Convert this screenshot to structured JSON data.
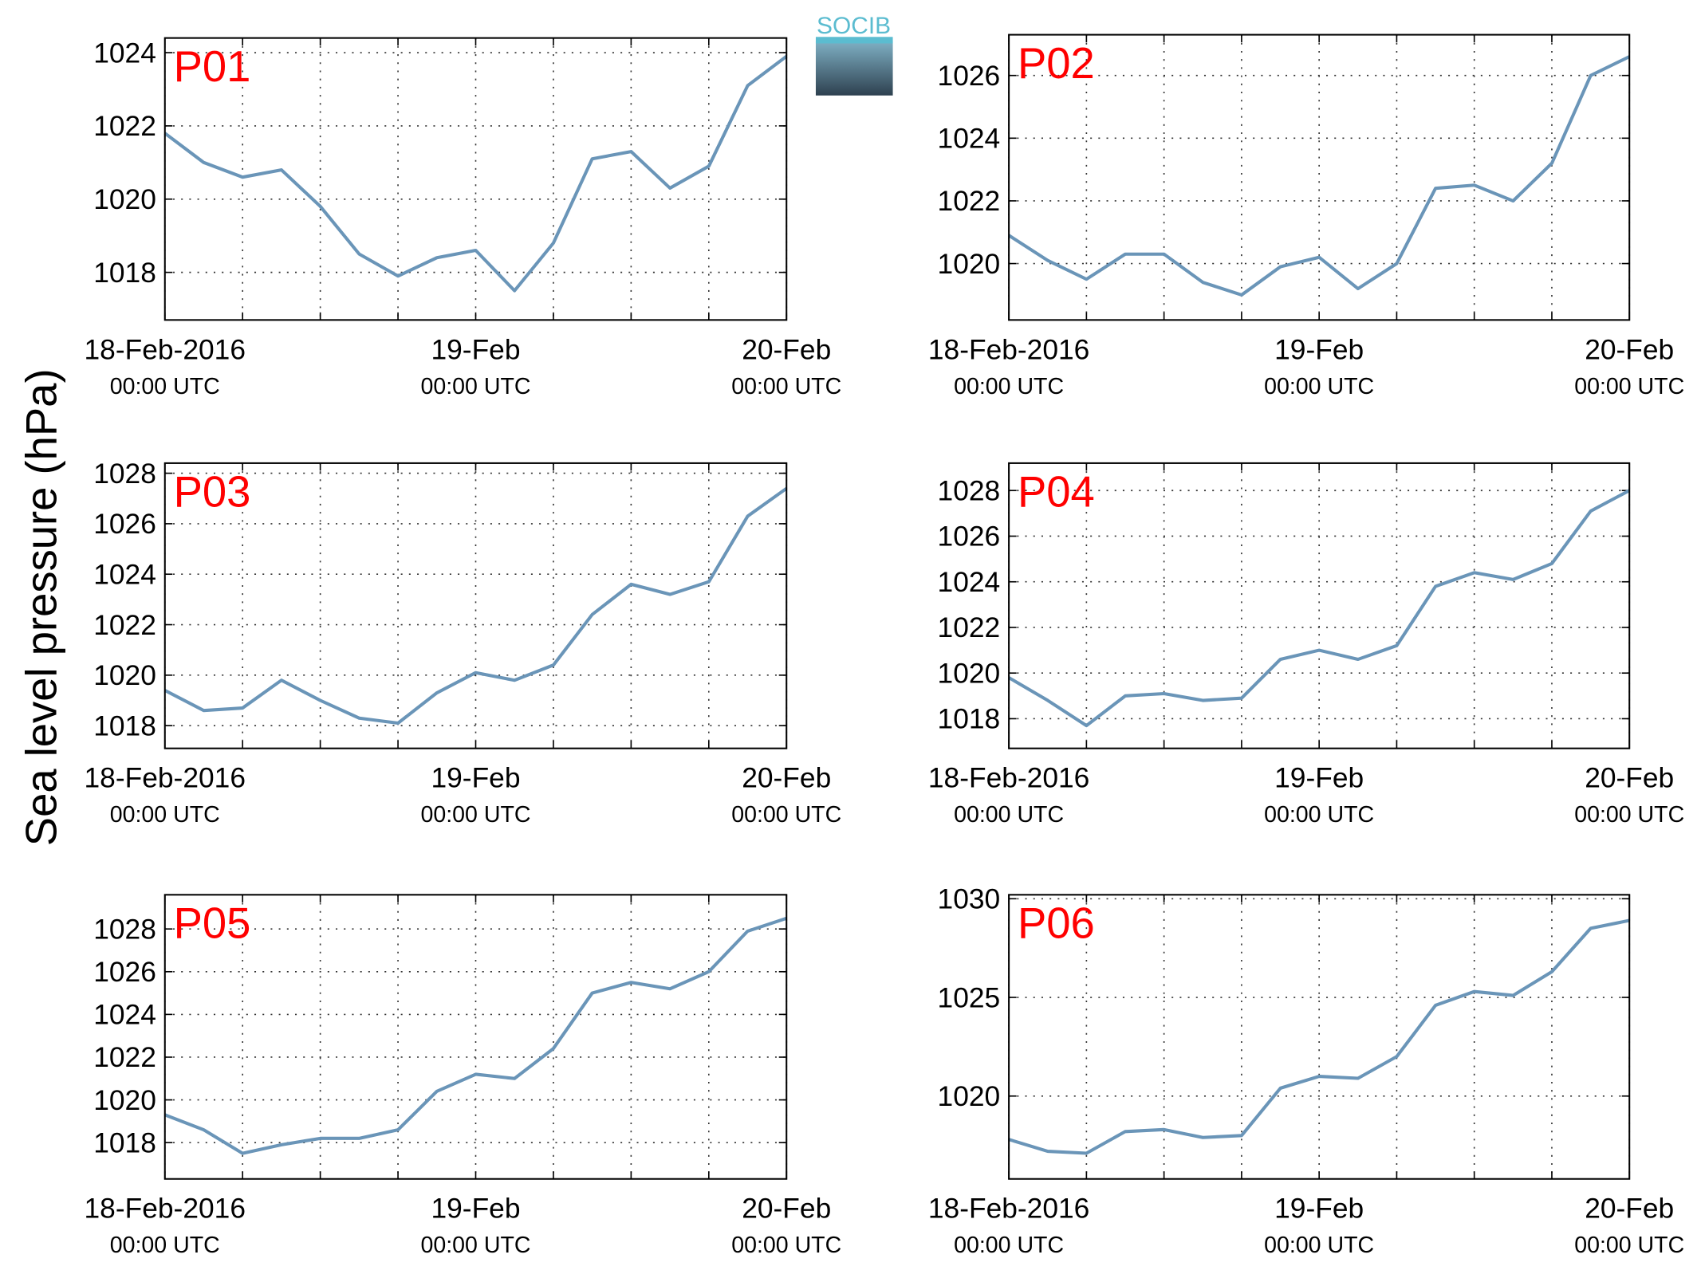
{
  "logo": "SOCIB",
  "ylabel": "Sea level pressure (hPa)",
  "chart_data": [
    {
      "type": "line",
      "title": "P01",
      "color": "#6a95b8",
      "grid": true,
      "x": [
        "2016-02-18 00:00",
        "2016-02-18 03:00",
        "2016-02-18 06:00",
        "2016-02-18 09:00",
        "2016-02-18 12:00",
        "2016-02-18 15:00",
        "2016-02-18 18:00",
        "2016-02-18 21:00",
        "2016-02-19 00:00",
        "2016-02-19 03:00",
        "2016-02-19 06:00",
        "2016-02-19 09:00",
        "2016-02-19 12:00",
        "2016-02-19 15:00",
        "2016-02-19 18:00",
        "2016-02-19 21:00",
        "2016-02-20 00:00"
      ],
      "values": [
        1021.8,
        1021.0,
        1020.6,
        1020.8,
        1019.8,
        1018.5,
        1017.9,
        1018.4,
        1018.6,
        1017.5,
        1018.8,
        1021.1,
        1021.3,
        1020.3,
        1020.9,
        1023.1,
        1023.9
      ],
      "xlim": [
        "2016-02-18 00:00",
        "2016-02-20 00:00"
      ],
      "xticks": [
        {
          "value": "2016-02-18 00:00",
          "label": "18-Feb-2016",
          "time": "00:00 UTC"
        },
        {
          "value": "2016-02-18 06:00",
          "label": null
        },
        {
          "value": "2016-02-18 12:00",
          "label": null
        },
        {
          "value": "2016-02-18 18:00",
          "label": null
        },
        {
          "value": "2016-02-19 00:00",
          "label": "19-Feb",
          "time": "00:00 UTC"
        },
        {
          "value": "2016-02-19 06:00",
          "label": null
        },
        {
          "value": "2016-02-19 12:00",
          "label": null
        },
        {
          "value": "2016-02-19 18:00",
          "label": null
        },
        {
          "value": "2016-02-20 00:00",
          "label": "20-Feb",
          "time": "00:00 UTC"
        }
      ],
      "ylim": [
        1016.7,
        1024.4
      ],
      "yticks": [
        1018,
        1020,
        1022,
        1024
      ]
    },
    {
      "type": "line",
      "title": "P02",
      "color": "#6a95b8",
      "grid": true,
      "x": [
        "2016-02-18 00:00",
        "2016-02-18 03:00",
        "2016-02-18 06:00",
        "2016-02-18 09:00",
        "2016-02-18 12:00",
        "2016-02-18 15:00",
        "2016-02-18 18:00",
        "2016-02-18 21:00",
        "2016-02-19 00:00",
        "2016-02-19 03:00",
        "2016-02-19 06:00",
        "2016-02-19 09:00",
        "2016-02-19 12:00",
        "2016-02-19 15:00",
        "2016-02-19 18:00",
        "2016-02-19 21:00",
        "2016-02-20 00:00"
      ],
      "values": [
        1020.9,
        1020.1,
        1019.5,
        1020.3,
        1020.3,
        1019.4,
        1019.0,
        1019.9,
        1020.2,
        1019.2,
        1020.0,
        1022.4,
        1022.5,
        1022.0,
        1023.2,
        1026.0,
        1026.6
      ],
      "xlim": [
        "2016-02-18 00:00",
        "2016-02-20 00:00"
      ],
      "xticks": [
        {
          "value": "2016-02-18 00:00",
          "label": "18-Feb-2016",
          "time": "00:00 UTC"
        },
        {
          "value": "2016-02-18 06:00",
          "label": null
        },
        {
          "value": "2016-02-18 12:00",
          "label": null
        },
        {
          "value": "2016-02-18 18:00",
          "label": null
        },
        {
          "value": "2016-02-19 00:00",
          "label": "19-Feb",
          "time": "00:00 UTC"
        },
        {
          "value": "2016-02-19 06:00",
          "label": null
        },
        {
          "value": "2016-02-19 12:00",
          "label": null
        },
        {
          "value": "2016-02-19 18:00",
          "label": null
        },
        {
          "value": "2016-02-20 00:00",
          "label": "20-Feb",
          "time": "00:00 UTC"
        }
      ],
      "ylim": [
        1018.2,
        1027.3
      ],
      "yticks": [
        1020,
        1022,
        1024,
        1026
      ]
    },
    {
      "type": "line",
      "title": "P03",
      "color": "#6a95b8",
      "grid": true,
      "x": [
        "2016-02-18 00:00",
        "2016-02-18 03:00",
        "2016-02-18 06:00",
        "2016-02-18 09:00",
        "2016-02-18 12:00",
        "2016-02-18 15:00",
        "2016-02-18 18:00",
        "2016-02-18 21:00",
        "2016-02-19 00:00",
        "2016-02-19 03:00",
        "2016-02-19 06:00",
        "2016-02-19 09:00",
        "2016-02-19 12:00",
        "2016-02-19 15:00",
        "2016-02-19 18:00",
        "2016-02-19 21:00",
        "2016-02-20 00:00"
      ],
      "values": [
        1019.4,
        1018.6,
        1018.7,
        1019.8,
        1019.0,
        1018.3,
        1018.1,
        1019.3,
        1020.1,
        1019.8,
        1020.4,
        1022.4,
        1023.6,
        1023.2,
        1023.7,
        1026.3,
        1027.4
      ],
      "xlim": [
        "2016-02-18 00:00",
        "2016-02-20 00:00"
      ],
      "xticks": [
        {
          "value": "2016-02-18 00:00",
          "label": "18-Feb-2016",
          "time": "00:00 UTC"
        },
        {
          "value": "2016-02-18 06:00",
          "label": null
        },
        {
          "value": "2016-02-18 12:00",
          "label": null
        },
        {
          "value": "2016-02-18 18:00",
          "label": null
        },
        {
          "value": "2016-02-19 00:00",
          "label": "19-Feb",
          "time": "00:00 UTC"
        },
        {
          "value": "2016-02-19 06:00",
          "label": null
        },
        {
          "value": "2016-02-19 12:00",
          "label": null
        },
        {
          "value": "2016-02-19 18:00",
          "label": null
        },
        {
          "value": "2016-02-20 00:00",
          "label": "20-Feb",
          "time": "00:00 UTC"
        }
      ],
      "ylim": [
        1017.1,
        1028.4
      ],
      "yticks": [
        1018,
        1020,
        1022,
        1024,
        1026,
        1028
      ]
    },
    {
      "type": "line",
      "title": "P04",
      "color": "#6a95b8",
      "grid": true,
      "x": [
        "2016-02-18 00:00",
        "2016-02-18 03:00",
        "2016-02-18 06:00",
        "2016-02-18 09:00",
        "2016-02-18 12:00",
        "2016-02-18 15:00",
        "2016-02-18 18:00",
        "2016-02-18 21:00",
        "2016-02-19 00:00",
        "2016-02-19 03:00",
        "2016-02-19 06:00",
        "2016-02-19 09:00",
        "2016-02-19 12:00",
        "2016-02-19 15:00",
        "2016-02-19 18:00",
        "2016-02-19 21:00",
        "2016-02-20 00:00"
      ],
      "values": [
        1019.8,
        1018.8,
        1017.7,
        1019.0,
        1019.1,
        1018.8,
        1018.9,
        1020.6,
        1021.0,
        1020.6,
        1021.2,
        1023.8,
        1024.4,
        1024.1,
        1024.8,
        1027.1,
        1028.0
      ],
      "xlim": [
        "2016-02-18 00:00",
        "2016-02-20 00:00"
      ],
      "xticks": [
        {
          "value": "2016-02-18 00:00",
          "label": "18-Feb-2016",
          "time": "00:00 UTC"
        },
        {
          "value": "2016-02-18 06:00",
          "label": null
        },
        {
          "value": "2016-02-18 12:00",
          "label": null
        },
        {
          "value": "2016-02-18 18:00",
          "label": null
        },
        {
          "value": "2016-02-19 00:00",
          "label": "19-Feb",
          "time": "00:00 UTC"
        },
        {
          "value": "2016-02-19 06:00",
          "label": null
        },
        {
          "value": "2016-02-19 12:00",
          "label": null
        },
        {
          "value": "2016-02-19 18:00",
          "label": null
        },
        {
          "value": "2016-02-20 00:00",
          "label": "20-Feb",
          "time": "00:00 UTC"
        }
      ],
      "ylim": [
        1016.7,
        1029.2
      ],
      "yticks": [
        1018,
        1020,
        1022,
        1024,
        1026,
        1028
      ]
    },
    {
      "type": "line",
      "title": "P05",
      "color": "#6a95b8",
      "grid": true,
      "x": [
        "2016-02-18 00:00",
        "2016-02-18 03:00",
        "2016-02-18 06:00",
        "2016-02-18 09:00",
        "2016-02-18 12:00",
        "2016-02-18 15:00",
        "2016-02-18 18:00",
        "2016-02-18 21:00",
        "2016-02-19 00:00",
        "2016-02-19 03:00",
        "2016-02-19 06:00",
        "2016-02-19 09:00",
        "2016-02-19 12:00",
        "2016-02-19 15:00",
        "2016-02-19 18:00",
        "2016-02-19 21:00",
        "2016-02-20 00:00"
      ],
      "values": [
        1019.3,
        1018.6,
        1017.5,
        1017.9,
        1018.2,
        1018.2,
        1018.6,
        1020.4,
        1021.2,
        1021.0,
        1022.4,
        1025.0,
        1025.5,
        1025.2,
        1026.0,
        1027.9,
        1028.5
      ],
      "xlim": [
        "2016-02-18 00:00",
        "2016-02-20 00:00"
      ],
      "xticks": [
        {
          "value": "2016-02-18 00:00",
          "label": "18-Feb-2016",
          "time": "00:00 UTC"
        },
        {
          "value": "2016-02-18 06:00",
          "label": null
        },
        {
          "value": "2016-02-18 12:00",
          "label": null
        },
        {
          "value": "2016-02-18 18:00",
          "label": null
        },
        {
          "value": "2016-02-19 00:00",
          "label": "19-Feb",
          "time": "00:00 UTC"
        },
        {
          "value": "2016-02-19 06:00",
          "label": null
        },
        {
          "value": "2016-02-19 12:00",
          "label": null
        },
        {
          "value": "2016-02-19 18:00",
          "label": null
        },
        {
          "value": "2016-02-20 00:00",
          "label": "20-Feb",
          "time": "00:00 UTC"
        }
      ],
      "ylim": [
        1016.3,
        1029.6
      ],
      "yticks": [
        1018,
        1020,
        1022,
        1024,
        1026,
        1028
      ]
    },
    {
      "type": "line",
      "title": "P06",
      "color": "#6a95b8",
      "grid": true,
      "x": [
        "2016-02-18 00:00",
        "2016-02-18 03:00",
        "2016-02-18 06:00",
        "2016-02-18 09:00",
        "2016-02-18 12:00",
        "2016-02-18 15:00",
        "2016-02-18 18:00",
        "2016-02-18 21:00",
        "2016-02-19 00:00",
        "2016-02-19 03:00",
        "2016-02-19 06:00",
        "2016-02-19 09:00",
        "2016-02-19 12:00",
        "2016-02-19 15:00",
        "2016-02-19 18:00",
        "2016-02-19 21:00",
        "2016-02-20 00:00"
      ],
      "values": [
        1017.8,
        1017.2,
        1017.1,
        1018.2,
        1018.3,
        1017.9,
        1018.0,
        1020.4,
        1021.0,
        1020.9,
        1022.0,
        1024.6,
        1025.3,
        1025.1,
        1026.3,
        1028.5,
        1028.9
      ],
      "xlim": [
        "2016-02-18 00:00",
        "2016-02-20 00:00"
      ],
      "xticks": [
        {
          "value": "2016-02-18 00:00",
          "label": "18-Feb-2016",
          "time": "00:00 UTC"
        },
        {
          "value": "2016-02-18 06:00",
          "label": null
        },
        {
          "value": "2016-02-18 12:00",
          "label": null
        },
        {
          "value": "2016-02-18 18:00",
          "label": null
        },
        {
          "value": "2016-02-19 00:00",
          "label": "19-Feb",
          "time": "00:00 UTC"
        },
        {
          "value": "2016-02-19 06:00",
          "label": null
        },
        {
          "value": "2016-02-19 12:00",
          "label": null
        },
        {
          "value": "2016-02-19 18:00",
          "label": null
        },
        {
          "value": "2016-02-20 00:00",
          "label": "20-Feb",
          "time": "00:00 UTC"
        }
      ],
      "ylim": [
        1015.8,
        1030.2
      ],
      "yticks": [
        1020,
        1025,
        1030
      ]
    }
  ]
}
